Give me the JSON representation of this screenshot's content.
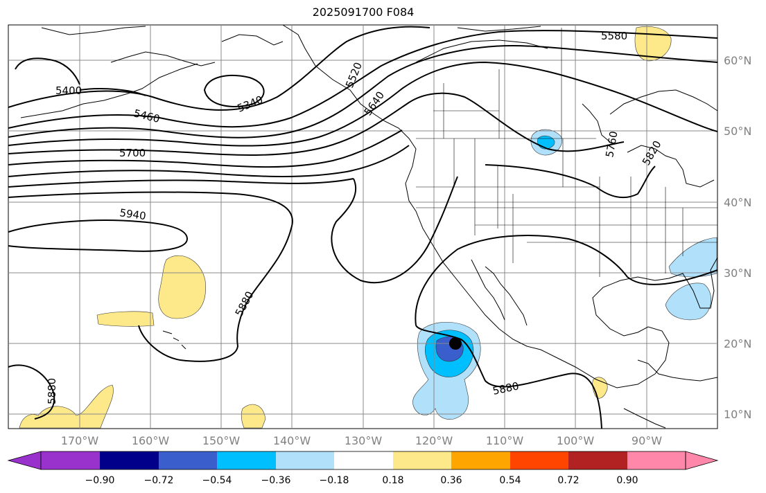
{
  "title": "2025091700 F084",
  "longitude_labels": [
    "170°W",
    "160°W",
    "150°W",
    "140°W",
    "130°W",
    "120°W",
    "110°W",
    "100°W",
    "90°W"
  ],
  "latitude_labels": [
    "60°N",
    "50°N",
    "40°N",
    "30°N",
    "20°N",
    "10°N"
  ],
  "contour_labels": [
    "5400",
    "5460",
    "5340",
    "5700",
    "5940",
    "5880",
    "5880",
    "5880",
    "5520",
    "5640",
    "5580",
    "5760",
    "5820"
  ],
  "colorbar": {
    "tick_labels": [
      "−0.90",
      "−0.72",
      "−0.54",
      "−0.36",
      "−0.18",
      "0.18",
      "0.36",
      "0.54",
      "0.72",
      "0.90"
    ],
    "colors": [
      "#9932cc",
      "#00008b",
      "#3a5fcd",
      "#00bfff",
      "#b0e0fa",
      "#ffffff",
      "#fde88a",
      "#ffa500",
      "#ff4500",
      "#b22222",
      "#ff88aa"
    ]
  },
  "map": {
    "extent_lon": [
      -180,
      -80
    ],
    "extent_lat": [
      8,
      65
    ],
    "storm_marker_lonlat": [
      -116.5,
      20
    ]
  }
}
